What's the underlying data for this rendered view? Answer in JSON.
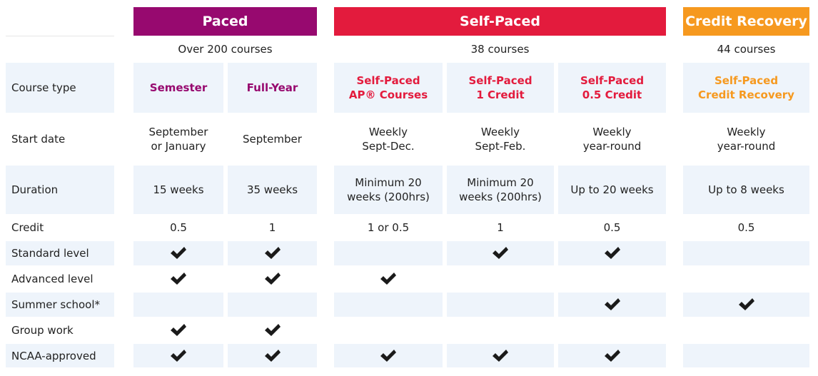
{
  "groups": [
    {
      "title": "Paced",
      "subtitle": "Over 200 courses",
      "color": "#97096f",
      "columns": [
        "Semester",
        "Full-Year"
      ]
    },
    {
      "title": "Self-Paced",
      "subtitle": "38 courses",
      "color": "#e31b3d",
      "columns": [
        "Self-Paced\nAP® Courses",
        "Self-Paced\n1 Credit",
        "Self-Paced\n0.5 Credit"
      ]
    },
    {
      "title": "Credit Recovery",
      "subtitle": "44 courses",
      "color": "#f6991f",
      "columns": [
        "Self-Paced\nCredit Recovery"
      ]
    }
  ],
  "course_type_label": "Course type",
  "rows": [
    {
      "label": "Start date",
      "cells": [
        "September\nor January",
        "September",
        "Weekly\nSept-Dec.",
        "Weekly\nSept-Feb.",
        "Weekly\nyear-round",
        "Weekly\nyear-round"
      ]
    },
    {
      "label": "Duration",
      "cells": [
        "15 weeks",
        "35 weeks",
        "Minimum 20\nweeks (200hrs)",
        "Minimum 20\nweeks (200hrs)",
        "Up to 20 weeks",
        "Up to 8 weeks"
      ]
    },
    {
      "label": "Credit",
      "cells": [
        "0.5",
        "1",
        "1 or 0.5",
        "1",
        "0.5",
        "0.5"
      ]
    },
    {
      "label": "Standard level",
      "cells": [
        true,
        true,
        false,
        true,
        true,
        false
      ]
    },
    {
      "label": "Advanced level",
      "cells": [
        true,
        true,
        true,
        false,
        false,
        false
      ]
    },
    {
      "label": "Summer school*",
      "cells": [
        false,
        false,
        false,
        false,
        true,
        true
      ]
    },
    {
      "label": "Group work",
      "cells": [
        true,
        true,
        false,
        false,
        false,
        false
      ]
    },
    {
      "label": "NCAA-approved",
      "cells": [
        true,
        true,
        true,
        true,
        true,
        false
      ]
    }
  ]
}
